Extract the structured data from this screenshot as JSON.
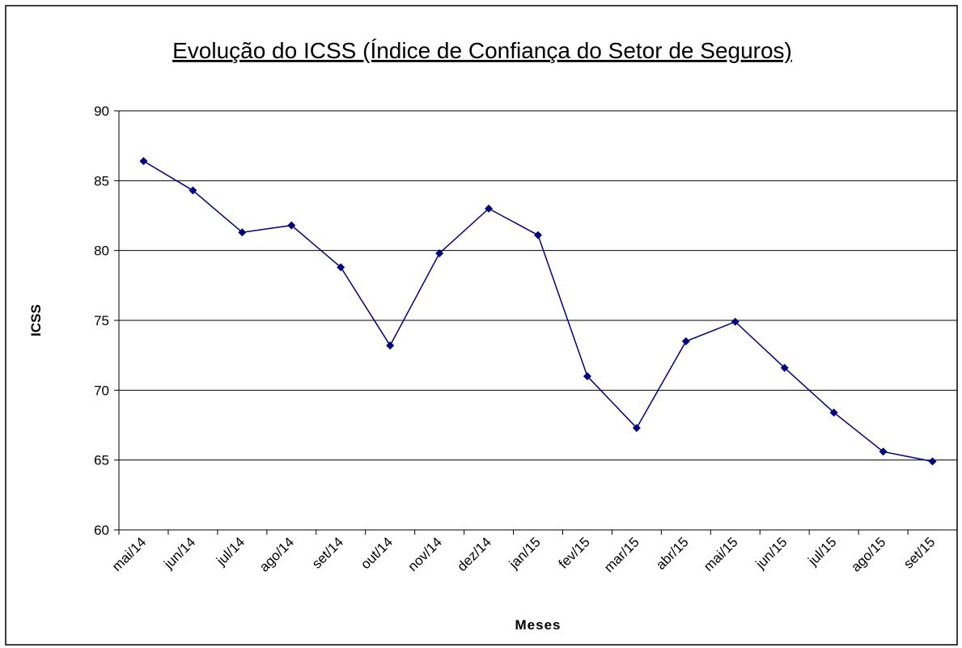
{
  "chart_data": {
    "type": "line",
    "title": "Evolução do ICSS (Índice de Confiança do Setor de Seguros)",
    "x_label": "Meses",
    "y_label": "ICSS",
    "categories": [
      "mai/14",
      "jun/14",
      "jul/14",
      "ago/14",
      "set/14",
      "out/14",
      "nov/14",
      "dez/14",
      "jan/15",
      "fev/15",
      "mar/15",
      "abr/15",
      "mai/15",
      "jun/15",
      "jul/15",
      "ago/15",
      "set/15"
    ],
    "series": [
      {
        "name": "ICSS",
        "color": "#000080",
        "values": [
          86.4,
          84.3,
          81.3,
          81.8,
          78.8,
          73.2,
          79.8,
          83.0,
          81.1,
          71.0,
          67.3,
          73.5,
          74.9,
          71.6,
          68.4,
          65.6,
          64.9
        ]
      }
    ],
    "ylim": [
      60,
      90
    ],
    "yticks": [
      60,
      65,
      70,
      75,
      80,
      85,
      90
    ],
    "grid": true
  }
}
